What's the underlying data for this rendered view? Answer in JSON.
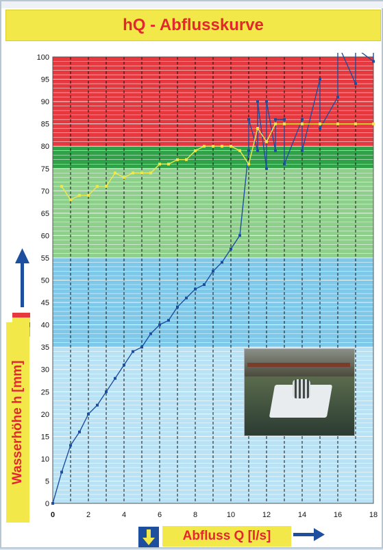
{
  "title": "hQ - Abflusskurve",
  "ylabel": "Wasserhöhe h [mm]",
  "xlabel": "Abfluss Q [l/s]",
  "icons": {
    "up_arrow": "arrow-up-icon",
    "right_arrow": "arrow-right-icon",
    "down_arrow": "arrow-down-icon"
  },
  "colors": {
    "title_bg": "#f2e84a",
    "title_text": "#e4262f",
    "zone_red": "#e5383f",
    "zone_darkgreen": "#2fa147",
    "zone_lightgreen": "#8ecf8c",
    "zone_blue": "#7ec8ea",
    "zone_lightblue": "#b9e3f5",
    "series_blue": "#1d4f9e",
    "series_yellow": "#f2e84a"
  },
  "chart_data": {
    "type": "line",
    "title": "hQ - Abflusskurve",
    "xlabel": "Abfluss Q [l/s]",
    "ylabel": "Wasserhöhe h [mm]",
    "xlim": [
      0,
      18
    ],
    "ylim": [
      0,
      100
    ],
    "x_ticks": [
      0,
      2,
      4,
      6,
      8,
      10,
      12,
      14,
      16,
      18
    ],
    "y_ticks": [
      0,
      5,
      10,
      15,
      20,
      25,
      30,
      35,
      40,
      45,
      50,
      55,
      60,
      65,
      70,
      75,
      80,
      85,
      90,
      95,
      100
    ],
    "grid": true,
    "bands": [
      {
        "from": 80,
        "to": 100,
        "color": "#e5383f"
      },
      {
        "from": 75,
        "to": 80,
        "color": "#2fa147"
      },
      {
        "from": 55,
        "to": 75,
        "color": "#8ecf8c"
      },
      {
        "from": 35,
        "to": 55,
        "color": "#7ec8ea"
      },
      {
        "from": 0,
        "to": 35,
        "color": "#b9e3f5"
      }
    ],
    "series": [
      {
        "color": "#1d4f9e",
        "points": [
          [
            0,
            0
          ],
          [
            0.5,
            7
          ],
          [
            1,
            13
          ],
          [
            1.5,
            16
          ],
          [
            2,
            20
          ],
          [
            2.5,
            22
          ],
          [
            3,
            25
          ],
          [
            3.5,
            28
          ],
          [
            4,
            31
          ],
          [
            4.5,
            34
          ],
          [
            5,
            35
          ],
          [
            5.5,
            38
          ],
          [
            6,
            40
          ],
          [
            6.5,
            41
          ],
          [
            7,
            44
          ],
          [
            7.5,
            46
          ],
          [
            8,
            48
          ],
          [
            8.5,
            49
          ],
          [
            9,
            52
          ],
          [
            9.5,
            54
          ],
          [
            10,
            57
          ],
          [
            10.5,
            60
          ],
          [
            11,
            79
          ],
          [
            11,
            86
          ],
          [
            11.5,
            79
          ],
          [
            11.5,
            90
          ],
          [
            12,
            75
          ],
          [
            12,
            90
          ],
          [
            12.5,
            79
          ],
          [
            12.5,
            86
          ],
          [
            13,
            86
          ],
          [
            13,
            76
          ],
          [
            14,
            86
          ],
          [
            14,
            79
          ],
          [
            15,
            95
          ],
          [
            15,
            84
          ],
          [
            16,
            91
          ],
          [
            16,
            103
          ],
          [
            17,
            94
          ],
          [
            17,
            102
          ],
          [
            18,
            99
          ],
          [
            18,
            104
          ]
        ]
      },
      {
        "color": "#f2e84a",
        "points": [
          [
            0.5,
            71
          ],
          [
            1,
            68
          ],
          [
            1.5,
            69
          ],
          [
            2,
            69
          ],
          [
            2.5,
            71
          ],
          [
            3,
            71
          ],
          [
            3.5,
            74
          ],
          [
            4,
            73
          ],
          [
            4.5,
            74
          ],
          [
            5,
            74
          ],
          [
            5.5,
            74
          ],
          [
            6,
            76
          ],
          [
            6.5,
            76
          ],
          [
            7,
            77
          ],
          [
            7.5,
            77
          ],
          [
            8,
            79
          ],
          [
            8.5,
            80
          ],
          [
            9,
            80
          ],
          [
            9.5,
            80
          ],
          [
            10,
            80
          ],
          [
            10.5,
            79
          ],
          [
            11,
            76
          ],
          [
            11.5,
            84
          ],
          [
            12,
            81
          ],
          [
            12.5,
            85
          ],
          [
            13,
            85
          ],
          [
            14,
            85
          ],
          [
            15,
            85
          ],
          [
            16,
            85
          ],
          [
            17,
            85
          ],
          [
            18,
            85
          ]
        ]
      }
    ]
  }
}
